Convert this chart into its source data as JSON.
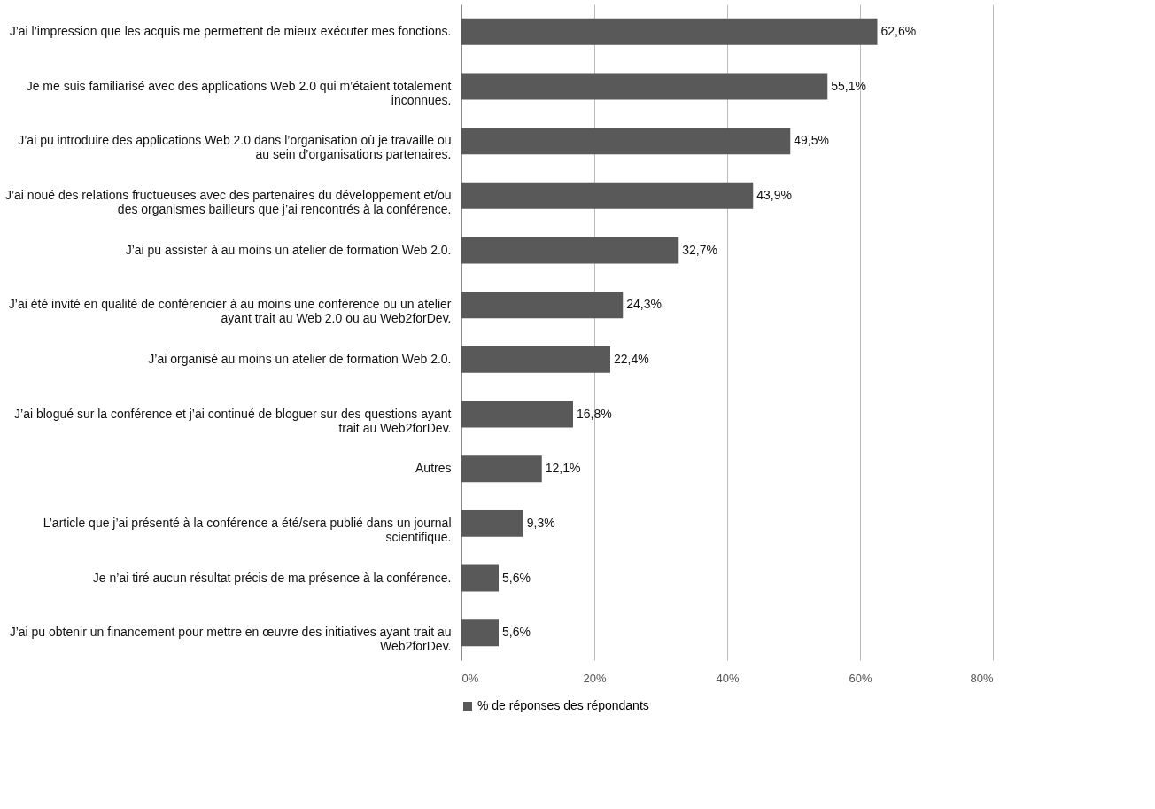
{
  "chart_data": {
    "type": "bar",
    "orientation": "horizontal",
    "categories": [
      "J’ai l’impression que les acquis me permettent de mieux exécuter mes fonctions.",
      "Je me suis familiarisé avec des applications Web 2.0 qui m’étaient totalement inconnues.",
      "J’ai pu introduire des applications Web 2.0 dans l’organisation où je travaille ou au sein d’organisations partenaires.",
      "J’ai noué des relations fructueuses avec des partenaires du développement et/ou des organismes bailleurs que j’ai rencontrés à la conférence.",
      "J’ai pu assister à au moins un atelier de formation Web 2.0.",
      "J’ai été invité en qualité de conférencier à au moins une conférence ou un atelier ayant trait au Web 2.0 ou au Web2forDev.",
      "J’ai organisé au moins un atelier de formation Web 2.0.",
      "J’ai blogué sur la conférence et j’ai continué de bloguer sur des questions ayant trait au Web2forDev.",
      "Autres",
      "L’article que j’ai présenté à la conférence a été/sera publié dans un journal scientifique.",
      "Je n’ai tiré aucun résultat précis de ma présence à la conférence.",
      "J’ai pu obtenir un financement pour mettre en œuvre des initiatives ayant trait au Web2forDev."
    ],
    "series": [
      {
        "name": "% de réponses des répondants",
        "color": "#595959",
        "values": [
          62.6,
          55.1,
          49.5,
          43.9,
          32.7,
          24.3,
          22.4,
          16.8,
          12.1,
          9.3,
          5.6,
          5.6
        ],
        "value_labels": [
          "62,6%",
          "55,1%",
          "49,5%",
          "43,9%",
          "32,7%",
          "24,3%",
          "22,4%",
          "16,8%",
          "12,1%",
          "9,3%",
          "5,6%",
          "5,6%"
        ]
      }
    ],
    "xlim": [
      0,
      80
    ],
    "xticks": [
      {
        "value": 0,
        "label": "0%"
      },
      {
        "value": 20,
        "label": "20%"
      },
      {
        "value": 40,
        "label": "40%"
      },
      {
        "value": 60,
        "label": "60%"
      },
      {
        "value": 80,
        "label": "80%"
      }
    ],
    "grid": "x",
    "legend": "bottom"
  }
}
